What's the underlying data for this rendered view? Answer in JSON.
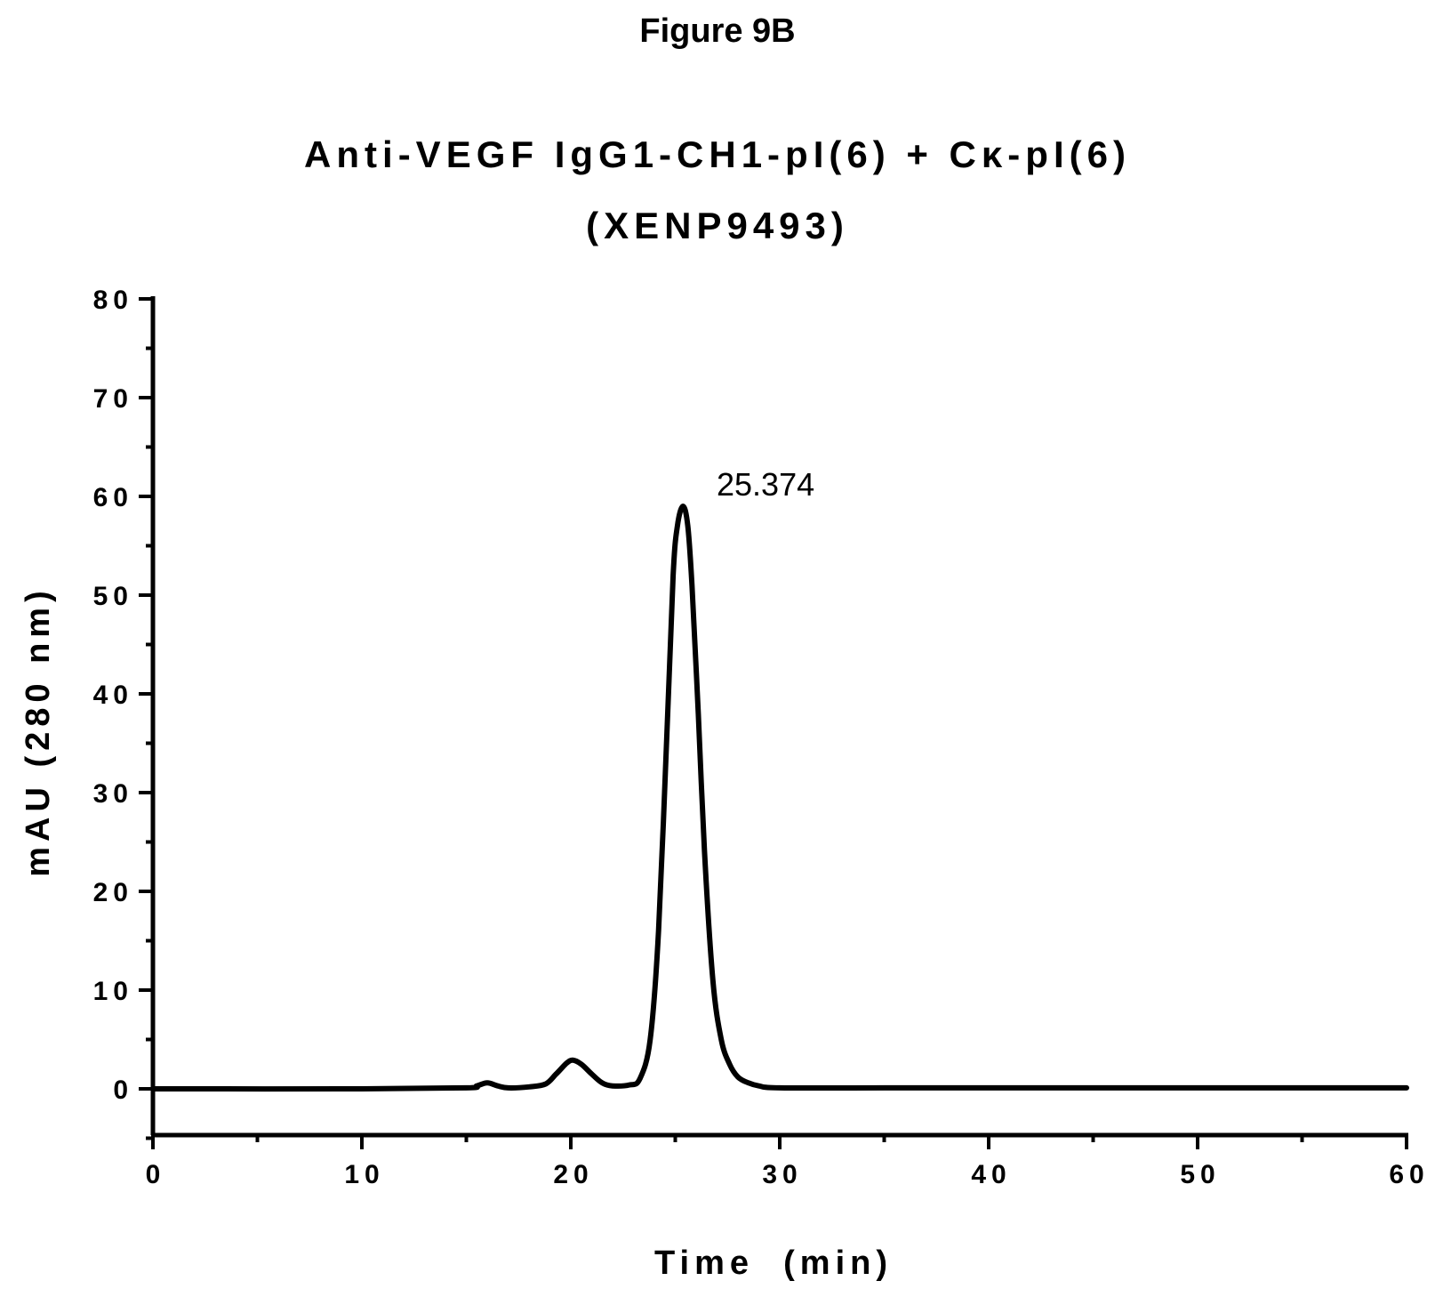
{
  "figure_label": "Figure 9B",
  "chart_data": {
    "type": "line",
    "title": "Anti-VEGF IgG1-CH1-pI(6) + Cκ-pI(6)",
    "subtitle": "(XENP9493)",
    "xlabel": "Time  (min)",
    "ylabel": "mAU (280 nm)",
    "xlim": [
      0,
      60
    ],
    "ylim": [
      -5,
      80
    ],
    "x_ticks": [
      0,
      10,
      20,
      30,
      40,
      50,
      60
    ],
    "y_ticks": [
      0,
      10,
      20,
      30,
      40,
      50,
      60,
      70,
      80
    ],
    "x_tick_labels": [
      "0",
      "10",
      "20",
      "30",
      "40",
      "50",
      "60"
    ],
    "y_tick_labels": [
      "0",
      "10",
      "20",
      "30",
      "40",
      "50",
      "60",
      "70",
      "80"
    ],
    "grid": false,
    "line_color": "#000000",
    "series": [
      {
        "x": [
          0,
          10,
          15,
          15.5,
          16,
          16.5,
          17,
          18,
          18.8,
          19.3,
          19.8,
          20.1,
          20.5,
          21,
          21.5,
          22,
          22.8,
          23.3,
          23.8,
          24.2,
          24.6,
          24.9,
          25.1,
          25.37,
          25.6,
          25.8,
          26.1,
          26.4,
          26.8,
          27.2,
          27.6,
          28,
          28.5,
          29,
          30,
          35,
          40,
          45,
          50,
          55,
          60
        ],
        "y": [
          0,
          0,
          0.1,
          0.3,
          0.6,
          0.3,
          0.1,
          0.2,
          0.5,
          1.5,
          2.6,
          2.9,
          2.5,
          1.5,
          0.6,
          0.3,
          0.4,
          1.0,
          5,
          16,
          36,
          52,
          57,
          59,
          57,
          51,
          38,
          24,
          11,
          5,
          2.5,
          1.2,
          0.6,
          0.3,
          0.1,
          0.1,
          0.1,
          0.1,
          0.1,
          0.1,
          0.1
        ]
      }
    ],
    "annotations": [
      {
        "text": "25.374",
        "x": 25.374,
        "y": 59
      }
    ]
  }
}
